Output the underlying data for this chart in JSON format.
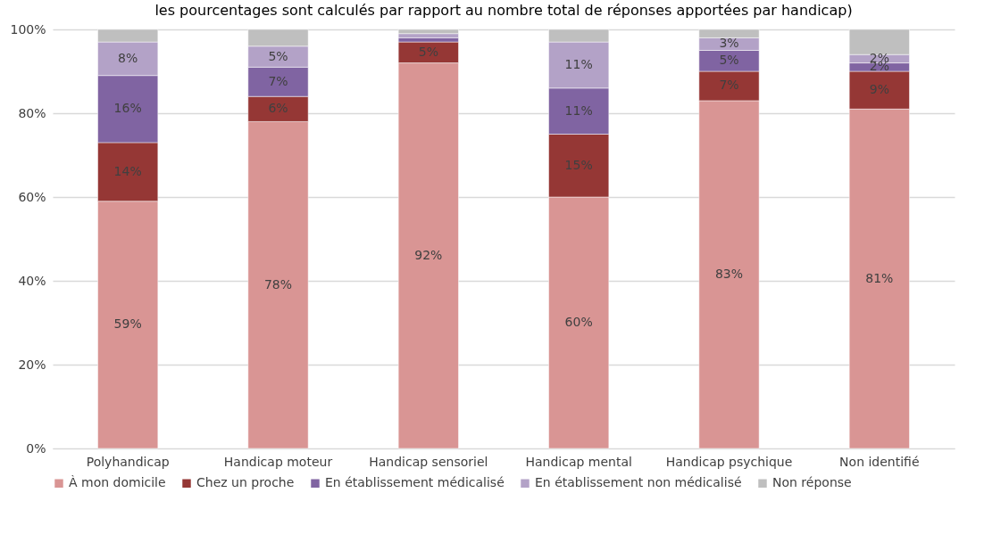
{
  "chart_data": {
    "type": "bar",
    "stacked": true,
    "title": "les pourcentages sont calculés par rapport au nombre total de réponses apportées par handicap)",
    "categories": [
      "Polyhandicap",
      "Handicap moteur",
      "Handicap sensoriel",
      "Handicap mental",
      "Handicap psychique",
      "Non identifié"
    ],
    "series": [
      {
        "name": "À mon domicile",
        "color": "#d99594",
        "values": [
          59,
          78,
          92,
          60,
          83,
          81
        ],
        "value_labels": [
          "59%",
          "78%",
          "92%",
          "60%",
          "83%",
          "81%"
        ]
      },
      {
        "name": "Chez un proche",
        "color": "#953735",
        "values": [
          14,
          6,
          5,
          15,
          7,
          9
        ],
        "value_labels": [
          "14%",
          "6%",
          "5%",
          "15%",
          "7%",
          "9%"
        ]
      },
      {
        "name": "En établissement médicalisé",
        "color": "#8064a2",
        "values": [
          16,
          7,
          1,
          11,
          5,
          2
        ],
        "value_labels": [
          "16%",
          "7%",
          null,
          "11%",
          "5%",
          "2%"
        ]
      },
      {
        "name": "En établissement non médicalisé",
        "color": "#b3a2c7",
        "values": [
          8,
          5,
          1,
          11,
          3,
          2
        ],
        "value_labels": [
          "8%",
          "5%",
          null,
          "11%",
          "3%",
          "2%"
        ]
      },
      {
        "name": "Non réponse",
        "color": "#bfbfbf",
        "values": [
          3,
          4,
          1,
          3,
          2,
          6
        ]
      }
    ],
    "ylim": [
      0,
      100
    ],
    "yticks": [
      {
        "value": 0,
        "label": "0%"
      },
      {
        "value": 20,
        "label": "20%"
      },
      {
        "value": 40,
        "label": "40%"
      },
      {
        "value": 60,
        "label": "60%"
      },
      {
        "value": 80,
        "label": "80%"
      },
      {
        "value": 100,
        "label": "100%"
      }
    ],
    "grid": "y",
    "legend": "bottom"
  }
}
